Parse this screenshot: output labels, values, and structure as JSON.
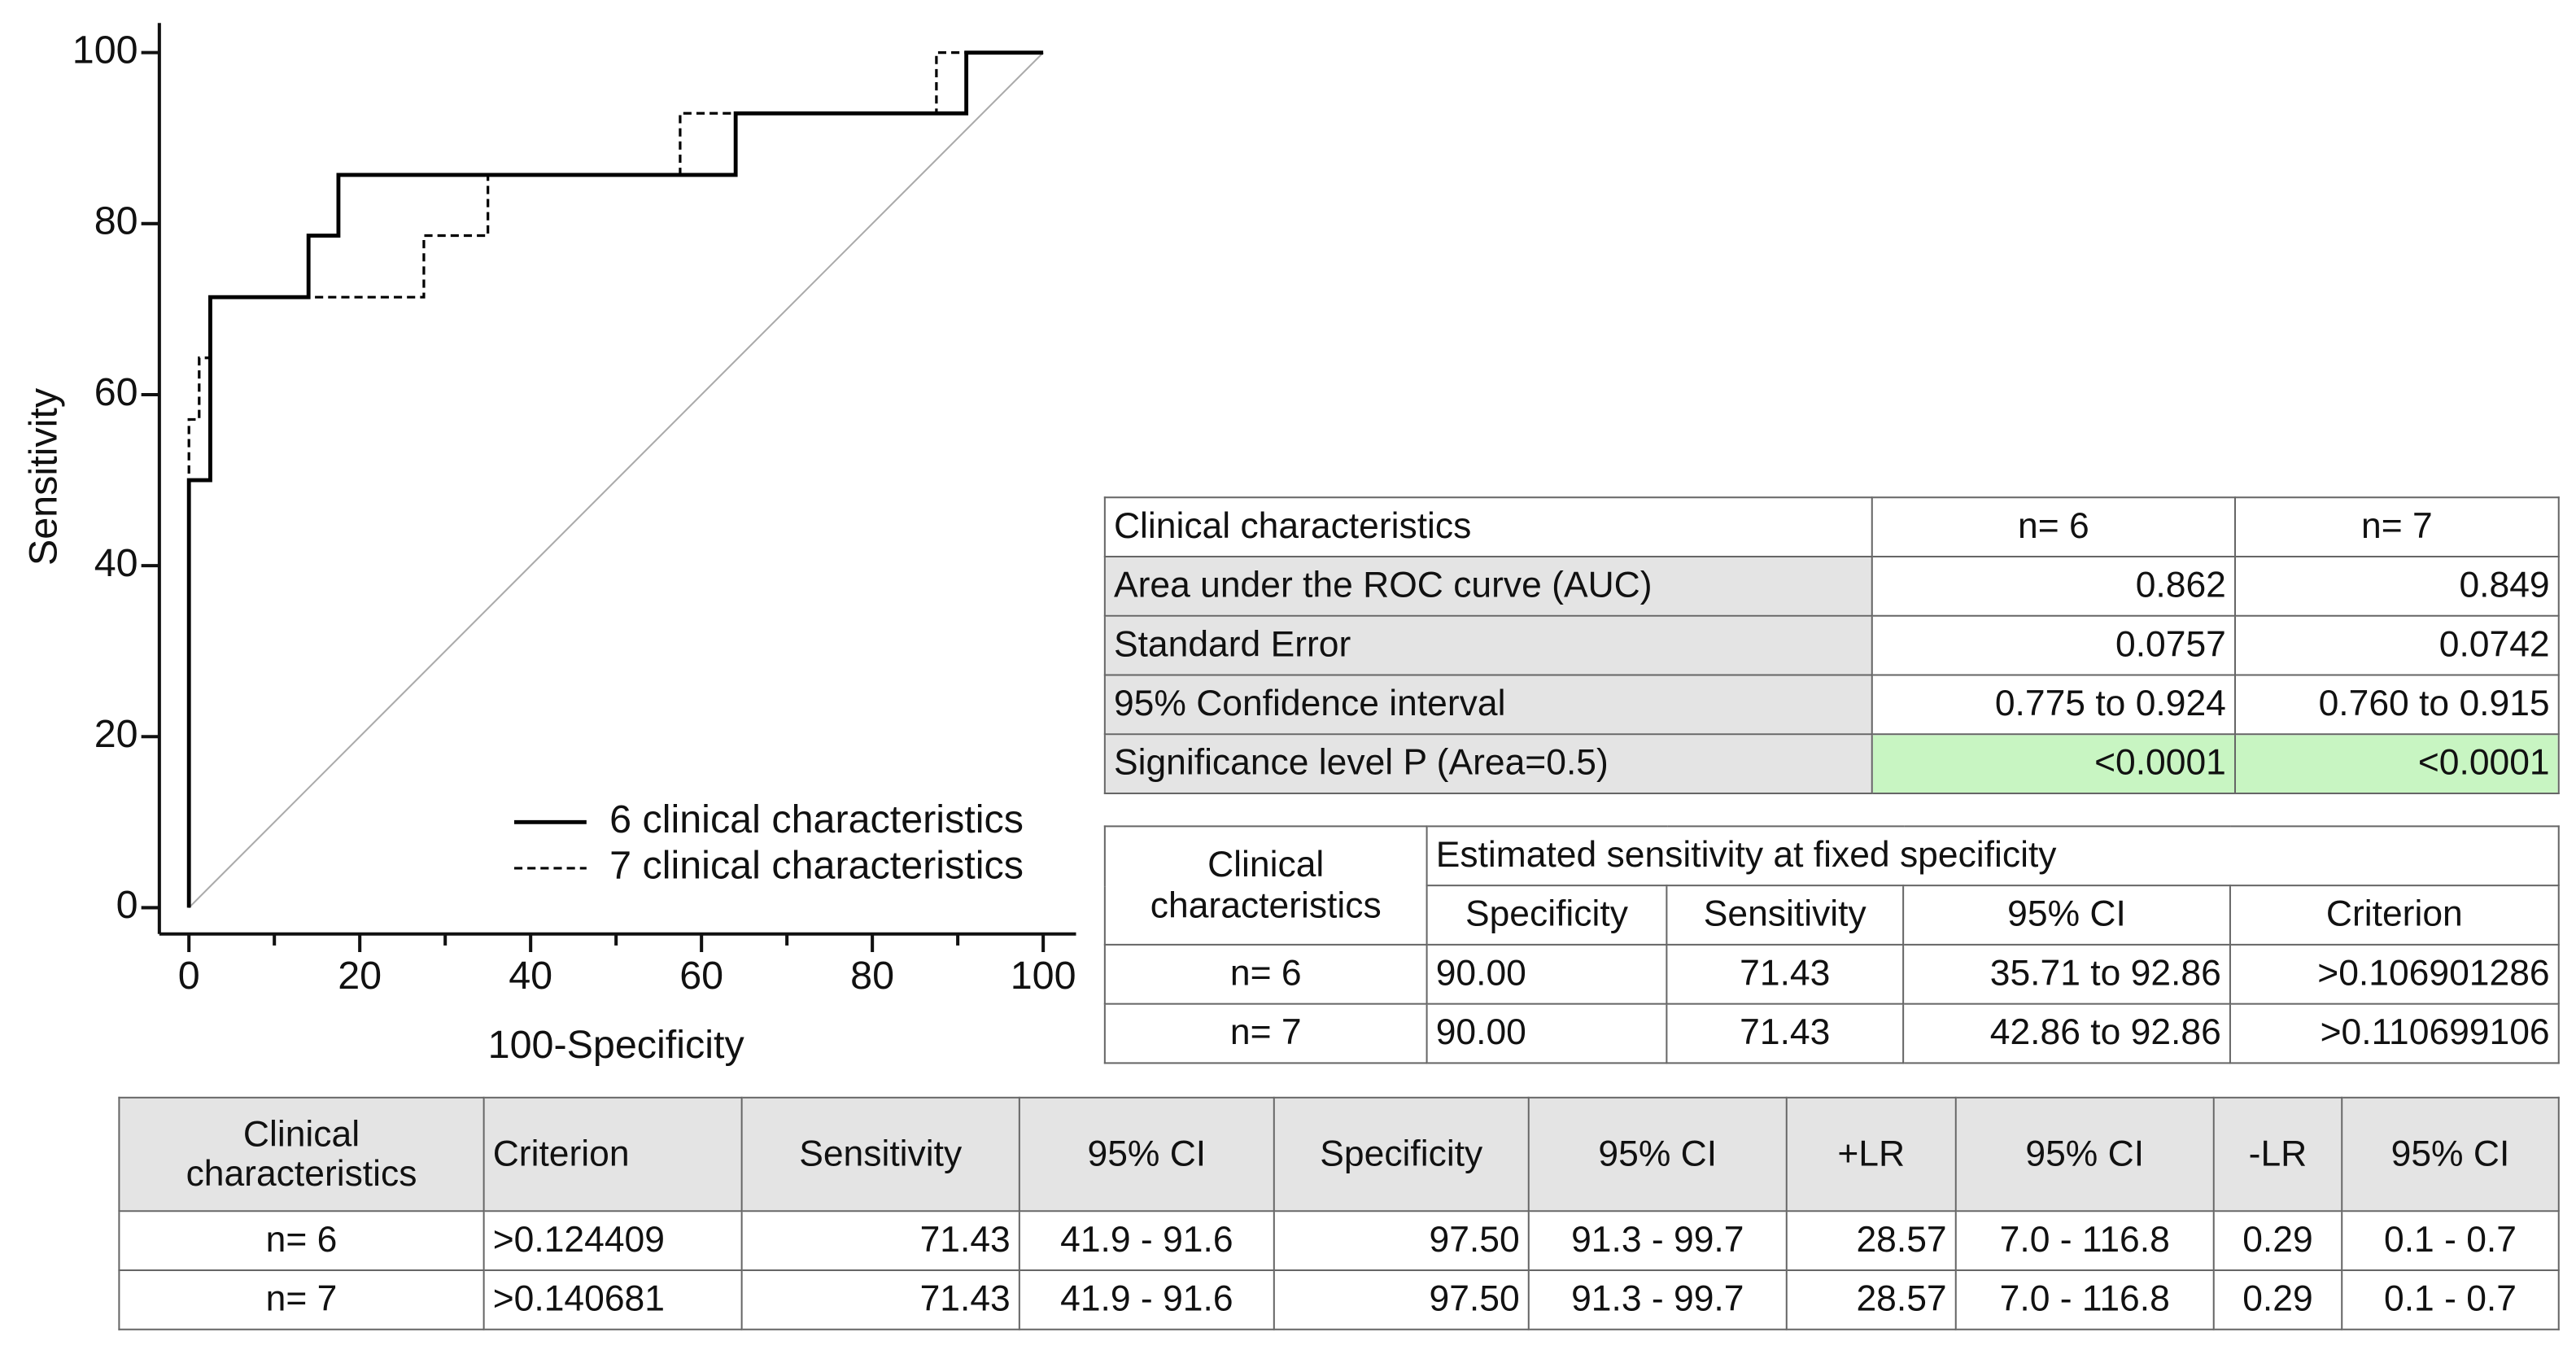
{
  "chart_data": {
    "type": "line",
    "xlabel": "100-Specificity",
    "ylabel": "Sensitivity",
    "xlim": [
      0,
      100
    ],
    "ylim": [
      0,
      100
    ],
    "xticks": [
      0,
      20,
      40,
      60,
      80,
      100
    ],
    "yticks": [
      0,
      20,
      40,
      60,
      80,
      100
    ],
    "xminorticks": [
      10,
      30,
      50,
      70,
      90
    ],
    "series": [
      {
        "name": "6 clinical characteristics",
        "color": "#000000",
        "dash": "solid",
        "x": [
          0,
          0,
          2.5,
          2.5,
          14,
          14,
          17.5,
          17.5,
          64,
          64,
          91,
          91,
          100
        ],
        "values": [
          0,
          50,
          50,
          71.4,
          71.4,
          78.6,
          78.6,
          85.7,
          85.7,
          92.9,
          92.9,
          100,
          100
        ]
      },
      {
        "name": "7 clinical characteristics",
        "color": "#000000",
        "dash": "dashed",
        "x": [
          0,
          0,
          1.2,
          1.2,
          2.5,
          2.5,
          27.5,
          27.5,
          35,
          35,
          57.5,
          57.5,
          87.5,
          87.5,
          100
        ],
        "values": [
          0,
          57.1,
          57.1,
          64.3,
          64.3,
          71.4,
          71.4,
          78.6,
          78.6,
          85.7,
          85.7,
          92.9,
          92.9,
          100,
          100
        ]
      }
    ]
  },
  "tables": [
    {
      "header": [
        "Clinical characteristics",
        "n= 6",
        "n= 7"
      ],
      "rows": [
        [
          "Area under the ROC curve (AUC)",
          "0.862",
          "0.849"
        ],
        [
          "Standard Error",
          "0.0757",
          "0.0742"
        ],
        [
          "95% Confidence interval",
          "0.775 to 0.924",
          "0.760 to 0.915"
        ],
        [
          "Significance level P (Area=0.5)",
          "<0.0001",
          "<0.0001"
        ]
      ]
    },
    {
      "header": [
        "Clinical characteristics",
        "Estimated sensitivity at fixed specificity"
      ],
      "subheader": [
        "Specificity",
        "Sensitivity",
        "95% CI",
        "Criterion"
      ],
      "rows": [
        [
          "n= 6",
          "90.00",
          "71.43",
          "35.71 to 92.86",
          ">0.106901286"
        ],
        [
          "n= 7",
          "90.00",
          "71.43",
          "42.86 to 92.86",
          ">0.110699106"
        ]
      ]
    },
    {
      "header": [
        "Clinical characteristics",
        "Criterion",
        "Sensitivity",
        "95% CI",
        "Specificity",
        "95% CI",
        "+LR",
        "95% CI",
        "-LR",
        "95% CI"
      ],
      "rows": [
        [
          "n= 6",
          ">0.124409",
          "71.43",
          "41.9 - 91.6",
          "97.50",
          "91.3 - 99.7",
          "28.57",
          "7.0 - 116.8",
          "0.29",
          "0.1 - 0.7"
        ],
        [
          "n= 7",
          ">0.140681",
          "71.43",
          "41.9 - 91.6",
          "97.50",
          "91.3 - 99.7",
          "28.57",
          "7.0 - 116.8",
          "0.29",
          "0.1 - 0.7"
        ]
      ]
    }
  ]
}
